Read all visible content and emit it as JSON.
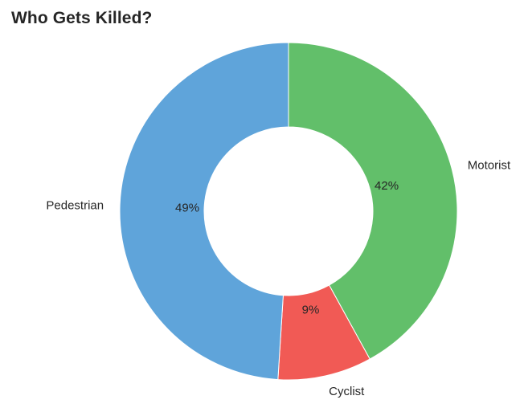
{
  "chart_data": {
    "type": "pie",
    "title": "Who Gets Killed?",
    "donut": true,
    "start_angle_deg": 90,
    "direction": "clockwise",
    "slices": [
      {
        "label": "Motorist",
        "value": 42,
        "pct_label": "42%",
        "color": "#62bf6a"
      },
      {
        "label": "Cyclist",
        "value": 9,
        "pct_label": "9%",
        "color": "#f15a55"
      },
      {
        "label": "Pedestrian",
        "value": 49,
        "pct_label": "49%",
        "color": "#5fa4da"
      }
    ]
  }
}
